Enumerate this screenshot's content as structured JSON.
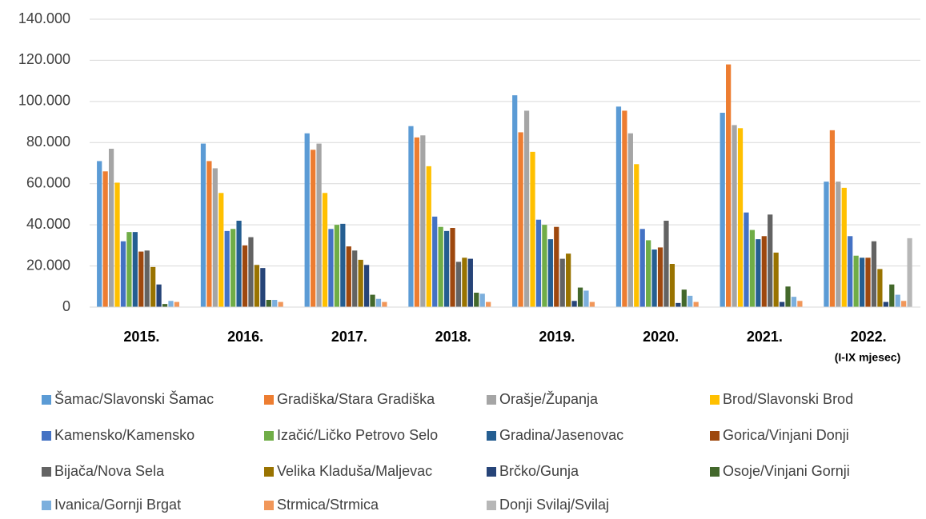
{
  "chart_data": {
    "type": "bar",
    "categories": [
      "2015.",
      "2016.",
      "2017.",
      "2018.",
      "2019.",
      "2020.",
      "2021.",
      "2022."
    ],
    "category_note": "(I-IX mjesec)",
    "ylim": [
      0,
      140000
    ],
    "yticks": [
      0,
      {
        "value": 20000,
        "label": "20.000"
      },
      {
        "value": 40000,
        "label": "40.000"
      },
      {
        "value": 60000,
        "label": "60.000"
      },
      {
        "value": 80000,
        "label": "80.000"
      },
      {
        "value": 100000,
        "label": "100.000"
      },
      {
        "value": 120000,
        "label": "120.000"
      },
      {
        "value": 140000,
        "label": "140.000"
      }
    ],
    "grid": true,
    "legend": "bottom",
    "series": [
      {
        "name": "Šamac/Slavonski Šamac",
        "color": "#5b9bd5",
        "values": [
          71000,
          79500,
          84500,
          88000,
          103000,
          97500,
          94500,
          61000
        ]
      },
      {
        "name": "Gradiška/Stara Gradiška",
        "color": "#ed7d31",
        "values": [
          66000,
          71000,
          76500,
          82500,
          85000,
          95500,
          118000,
          86000
        ]
      },
      {
        "name": "Orašje/Županja",
        "color": "#a5a5a5",
        "values": [
          77000,
          67500,
          79500,
          83500,
          95500,
          84500,
          88500,
          61000
        ]
      },
      {
        "name": "Brod/Slavonski Brod",
        "color": "#ffc000",
        "values": [
          60500,
          55500,
          55500,
          68500,
          75500,
          69500,
          87000,
          58000
        ]
      },
      {
        "name": "Kamensko/Kamensko",
        "color": "#4472c4",
        "values": [
          32000,
          37000,
          38000,
          44000,
          42500,
          38000,
          46000,
          34500
        ]
      },
      {
        "name": "Izačić/Ličko Petrovo Selo",
        "color": "#70ad47",
        "values": [
          36500,
          38000,
          40000,
          39000,
          40000,
          32500,
          37500,
          25000
        ]
      },
      {
        "name": "Gradina/Jasenovac",
        "color": "#255e91",
        "values": [
          36500,
          42000,
          40500,
          37000,
          33000,
          28000,
          33000,
          24000
        ]
      },
      {
        "name": "Gorica/Vinjani Donji",
        "color": "#9e480e",
        "values": [
          27000,
          30000,
          29500,
          38500,
          39000,
          29000,
          34500,
          24000
        ]
      },
      {
        "name": "Bijača/Nova Sela",
        "color": "#636363",
        "values": [
          27500,
          34000,
          27500,
          22000,
          23500,
          42000,
          45000,
          32000
        ]
      },
      {
        "name": "Velika Kladuša/Maljevac",
        "color": "#997300",
        "values": [
          19500,
          20500,
          23000,
          24000,
          26000,
          21000,
          26500,
          18500
        ]
      },
      {
        "name": "Brčko/Gunja",
        "color": "#264478",
        "values": [
          11000,
          19000,
          20500,
          23500,
          3000,
          2000,
          2500,
          2500
        ]
      },
      {
        "name": "Osoje/Vinjani Gornji",
        "color": "#43682b",
        "values": [
          1500,
          3500,
          6000,
          7000,
          9500,
          8500,
          10000,
          11000
        ]
      },
      {
        "name": "Ivanica/Gornji Brgat",
        "color": "#7cafdd",
        "values": [
          3000,
          3500,
          4000,
          6500,
          8000,
          5500,
          5000,
          6000
        ]
      },
      {
        "name": "Strmica/Strmica",
        "color": "#f1975a",
        "values": [
          2500,
          2500,
          2500,
          2500,
          2500,
          2500,
          3000,
          3000
        ]
      },
      {
        "name": "Donji Svilaj/Svilaj",
        "color": "#b7b7b7",
        "values": [
          0,
          0,
          0,
          0,
          0,
          0,
          0,
          33500
        ]
      }
    ]
  }
}
